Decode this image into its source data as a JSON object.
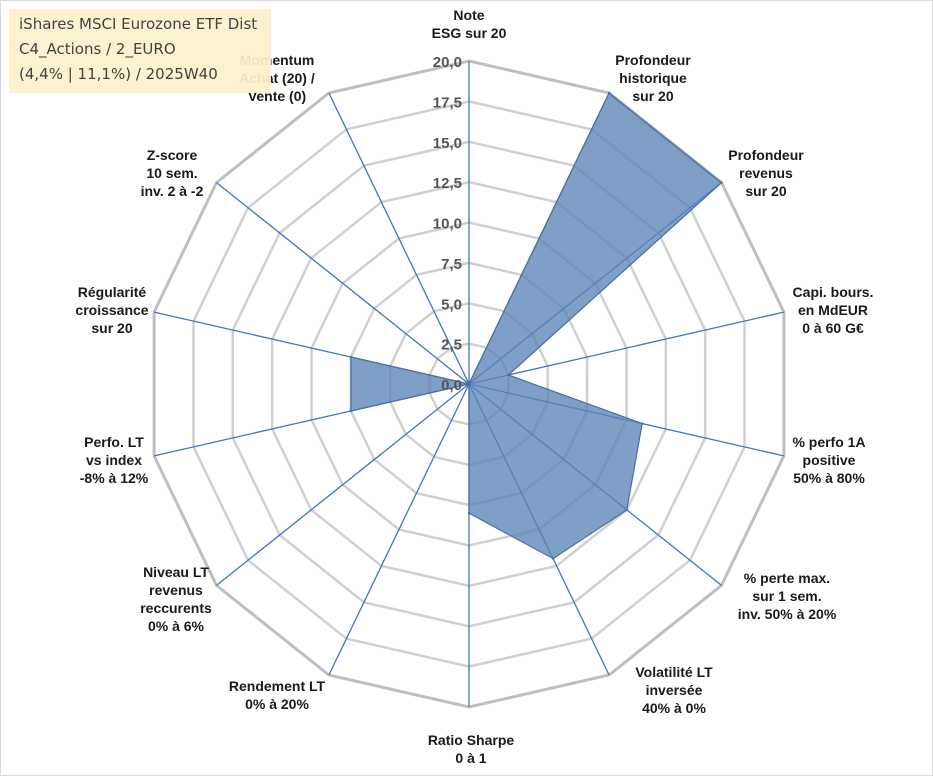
{
  "title": {
    "lines": [
      "iShares MSCI Eurozone ETF Dist",
      "C4_Actions / 2_EURO",
      "(4,4% | 11,1%) / 2025W40"
    ]
  },
  "chart_data": {
    "type": "radar",
    "rmin": 0,
    "rmax": 20,
    "ticks": [
      "0,0",
      "2,5",
      "5,0",
      "7,5",
      "10,0",
      "12,5",
      "15,0",
      "17,5",
      "20,0"
    ],
    "axes": [
      [
        "Note",
        "ESG sur 20"
      ],
      [
        "Profondeur",
        "historique",
        "sur 20"
      ],
      [
        "Profondeur",
        "revenus",
        "sur 20"
      ],
      [
        "Capi. bours.",
        "en MdEUR",
        "0 à 60 G€"
      ],
      [
        "% perfo 1A",
        "positive",
        "50% à 80%"
      ],
      [
        "% perte max.",
        "sur 1 sem.",
        "inv. 50% à 20%"
      ],
      [
        "Volatilité LT",
        "inversée",
        "40% à 0%"
      ],
      [
        "Ratio Sharpe",
        "0 à 1"
      ],
      [
        "Rendement LT",
        "0% à 20%"
      ],
      [
        "Niveau LT",
        "revenus",
        "reccurents",
        "0% à 6%"
      ],
      [
        "Perfo. LT",
        "vs index",
        "-8% à 12%"
      ],
      [
        "Régularité",
        "croissance",
        "sur 20"
      ],
      [
        "Z-score",
        "10 sem.",
        "inv. 2 à -2"
      ],
      [
        "Momentum",
        "Achat (20) /",
        "Vente (0)"
      ]
    ],
    "values": [
      0,
      20,
      20,
      2.5,
      11,
      12.5,
      12,
      8,
      0,
      0,
      7.5,
      7.5,
      0,
      0
    ],
    "series_color": "#5b84b7",
    "grid": true
  }
}
